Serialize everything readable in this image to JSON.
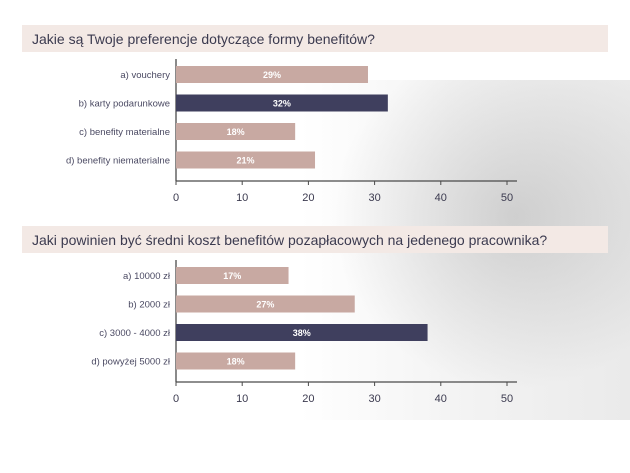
{
  "colors": {
    "bar": "#c8a9a2",
    "highlight": "#3f3f5e",
    "axis": "#4a4a4a",
    "band": "#f3e9e5",
    "text": "#3b3a4f"
  },
  "chart_data": [
    {
      "type": "bar",
      "orientation": "horizontal",
      "title": "Jakie są Twoje preferencje dotyczące formy benefitów?",
      "categories": [
        "a) vouchery",
        "b) karty podarunkowe",
        "c) benefity materialne",
        "d) benefity niematerialne"
      ],
      "values": [
        29,
        32,
        18,
        21
      ],
      "value_labels": [
        "29%",
        "32%",
        "18%",
        "21%"
      ],
      "highlight_index": 1,
      "xlim": [
        0,
        50
      ],
      "xticks": [
        0,
        10,
        20,
        30,
        40,
        50
      ],
      "grid": false
    },
    {
      "type": "bar",
      "orientation": "horizontal",
      "title": "Jaki powinien być średni koszt benefitów pozapłacowych na jedenego pracownika?",
      "categories": [
        "a) 10000 zł",
        "b) 2000 zł",
        "c) 3000 - 4000 zł",
        "d) powyżej 5000 zł"
      ],
      "values": [
        17,
        27,
        38,
        18
      ],
      "value_labels": [
        "17%",
        "27%",
        "38%",
        "18%"
      ],
      "highlight_index": 2,
      "xlim": [
        0,
        50
      ],
      "xticks": [
        0,
        10,
        20,
        30,
        40,
        50
      ],
      "grid": false
    }
  ]
}
